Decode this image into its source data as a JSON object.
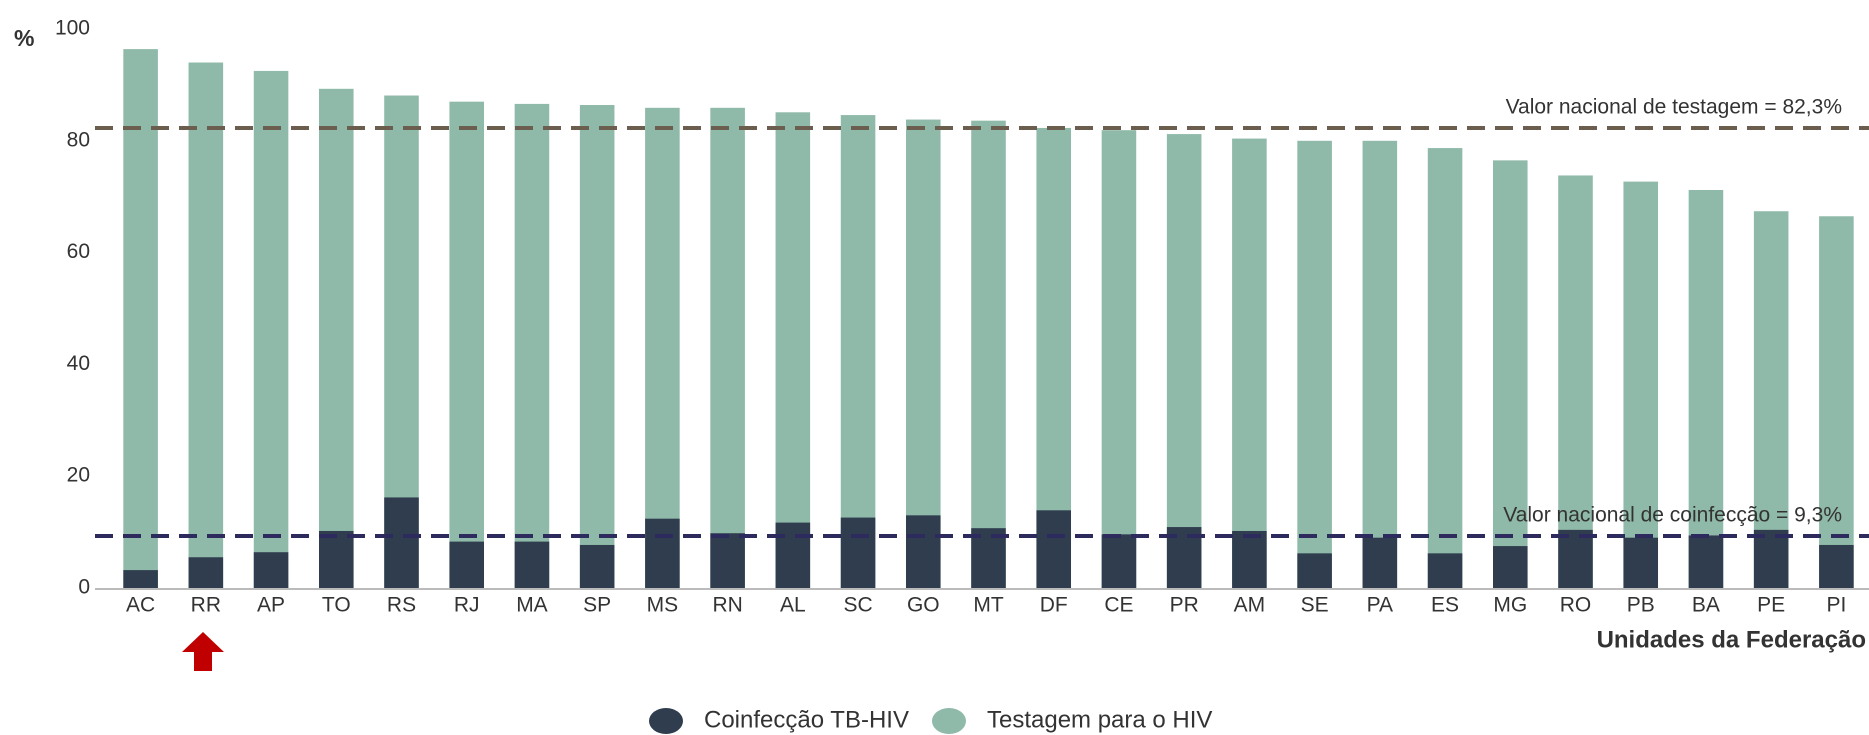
{
  "chart_data": {
    "type": "bar",
    "y_label": "%",
    "x_label": "Unidades da Federação",
    "categories": [
      "AC",
      "RR",
      "AP",
      "TO",
      "RS",
      "RJ",
      "MA",
      "SP",
      "MS",
      "RN",
      "AL",
      "SC",
      "GO",
      "MT",
      "DF",
      "CE",
      "PR",
      "AM",
      "SE",
      "PA",
      "ES",
      "MG",
      "RO",
      "PB",
      "BA",
      "PE",
      "PI"
    ],
    "series": [
      {
        "name": "Testagem para o HIV",
        "color": "#8fb9a8",
        "values": [
          96.4,
          94.0,
          92.5,
          89.3,
          88.1,
          87.0,
          86.6,
          86.4,
          85.9,
          85.9,
          85.1,
          84.6,
          83.8,
          83.6,
          82.3,
          81.9,
          81.2,
          80.4,
          80.0,
          80.0,
          78.7,
          76.5,
          73.8,
          72.7,
          71.2,
          67.4,
          66.5
        ]
      },
      {
        "name": "Coinfecção TB-HIV",
        "color": "#2f3d4f",
        "values": [
          3.2,
          5.5,
          6.4,
          10.2,
          16.2,
          8.3,
          8.3,
          7.7,
          12.4,
          9.8,
          11.7,
          12.6,
          13.0,
          10.7,
          13.9,
          9.6,
          10.9,
          10.2,
          6.2,
          9.0,
          6.2,
          7.5,
          10.4,
          9.0,
          9.4,
          10.4,
          7.7
        ]
      }
    ],
    "legend_order": [
      1,
      0
    ],
    "reference_lines": [
      {
        "value": 82.3,
        "label": "Valor nacional de testagem = 82,3%",
        "color": "#6b5e4e"
      },
      {
        "value": 9.3,
        "label": "Valor nacional de coinfecção = 9,3%",
        "color": "#2d2a5e"
      }
    ],
    "ylim": [
      0,
      100
    ],
    "yticks": [
      0,
      20,
      40,
      60,
      80,
      100
    ],
    "grid": false
  }
}
